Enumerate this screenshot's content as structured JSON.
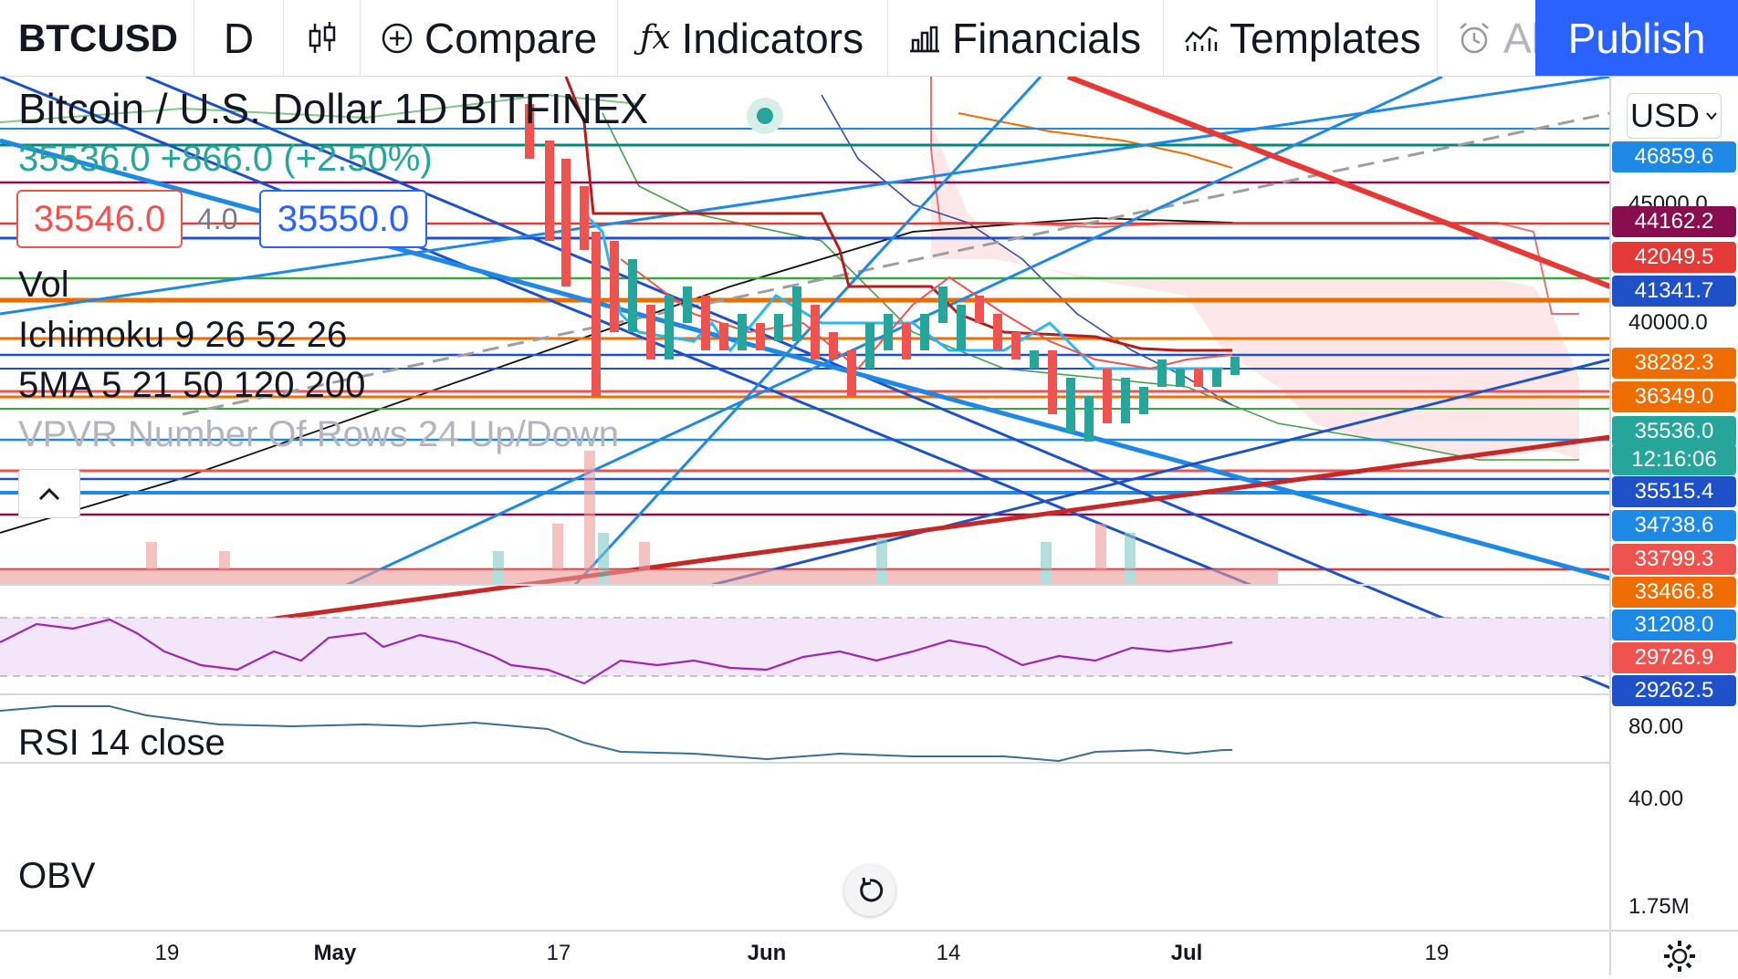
{
  "toolbar": {
    "symbol": "BTCUSD",
    "interval": "D",
    "compare_label": "Compare",
    "indicators_label": "Indicators",
    "financials_label": "Financials",
    "templates_label": "Templates",
    "alert_label": "Al",
    "publish_label": "Publish"
  },
  "legend": {
    "title": "Bitcoin / U.S. Dollar  1D  BITFINEX",
    "change": "35536.0 +866.0 (+2.50%)",
    "sell_price": "35546.0",
    "spread": "4.0",
    "buy_price": "35550.0",
    "indicators": [
      "Vol",
      "Ichimoku 9 26 52 26",
      "5MA 5 21 50 120 200",
      "VPVR Number Of Rows 24 Up/Down"
    ]
  },
  "panes": {
    "rsi_label": "RSI 14 close",
    "obv_label": "OBV"
  },
  "price_scale": {
    "currency": "USD",
    "ticks": [
      "45000.0",
      "40000.0"
    ],
    "rsi_ticks": [
      "80.00",
      "40.00"
    ],
    "obv_tick": "1.75M",
    "levels": [
      {
        "label": "46859.6",
        "color": "#1e88e5"
      },
      {
        "label": "44162.2",
        "color": "#880e4f"
      },
      {
        "label": "42049.5",
        "color": "#e53935"
      },
      {
        "label": "41341.7",
        "color": "#1e50c8"
      },
      {
        "label": "38282.3",
        "color": "#ef6c00"
      },
      {
        "label": "36349.0",
        "color": "#ef6c00"
      },
      {
        "label": "35536.0",
        "color": "#26a69a"
      },
      {
        "label": "12:16:06",
        "color": "#26a69a"
      },
      {
        "label": "35515.4",
        "color": "#1e50c8"
      },
      {
        "label": "34738.6",
        "color": "#1e88e5"
      },
      {
        "label": "33799.3",
        "color": "#ef5350"
      },
      {
        "label": "33466.8",
        "color": "#ef6c00"
      },
      {
        "label": "31208.0",
        "color": "#1e88e5"
      },
      {
        "label": "29726.9",
        "color": "#ef5350"
      },
      {
        "label": "29262.5",
        "color": "#1e50c8"
      }
    ]
  },
  "time_axis": [
    "19",
    "May",
    "17",
    "Jun",
    "14",
    "Jul",
    "19"
  ],
  "colors": {
    "up": "#26a69a",
    "down": "#ef5350",
    "accent": "#2962ff",
    "cloud": "#fde7e9",
    "rsi_band": "#f3e5fa"
  },
  "icons": {
    "style": "candles-icon",
    "compare": "plus-circle-icon",
    "indicators": "fx-icon",
    "financials": "bar-chart-icon",
    "templates": "templates-icon",
    "alert": "alarm-clock-icon",
    "settings": "gear-icon",
    "reset": "reset-icon"
  }
}
